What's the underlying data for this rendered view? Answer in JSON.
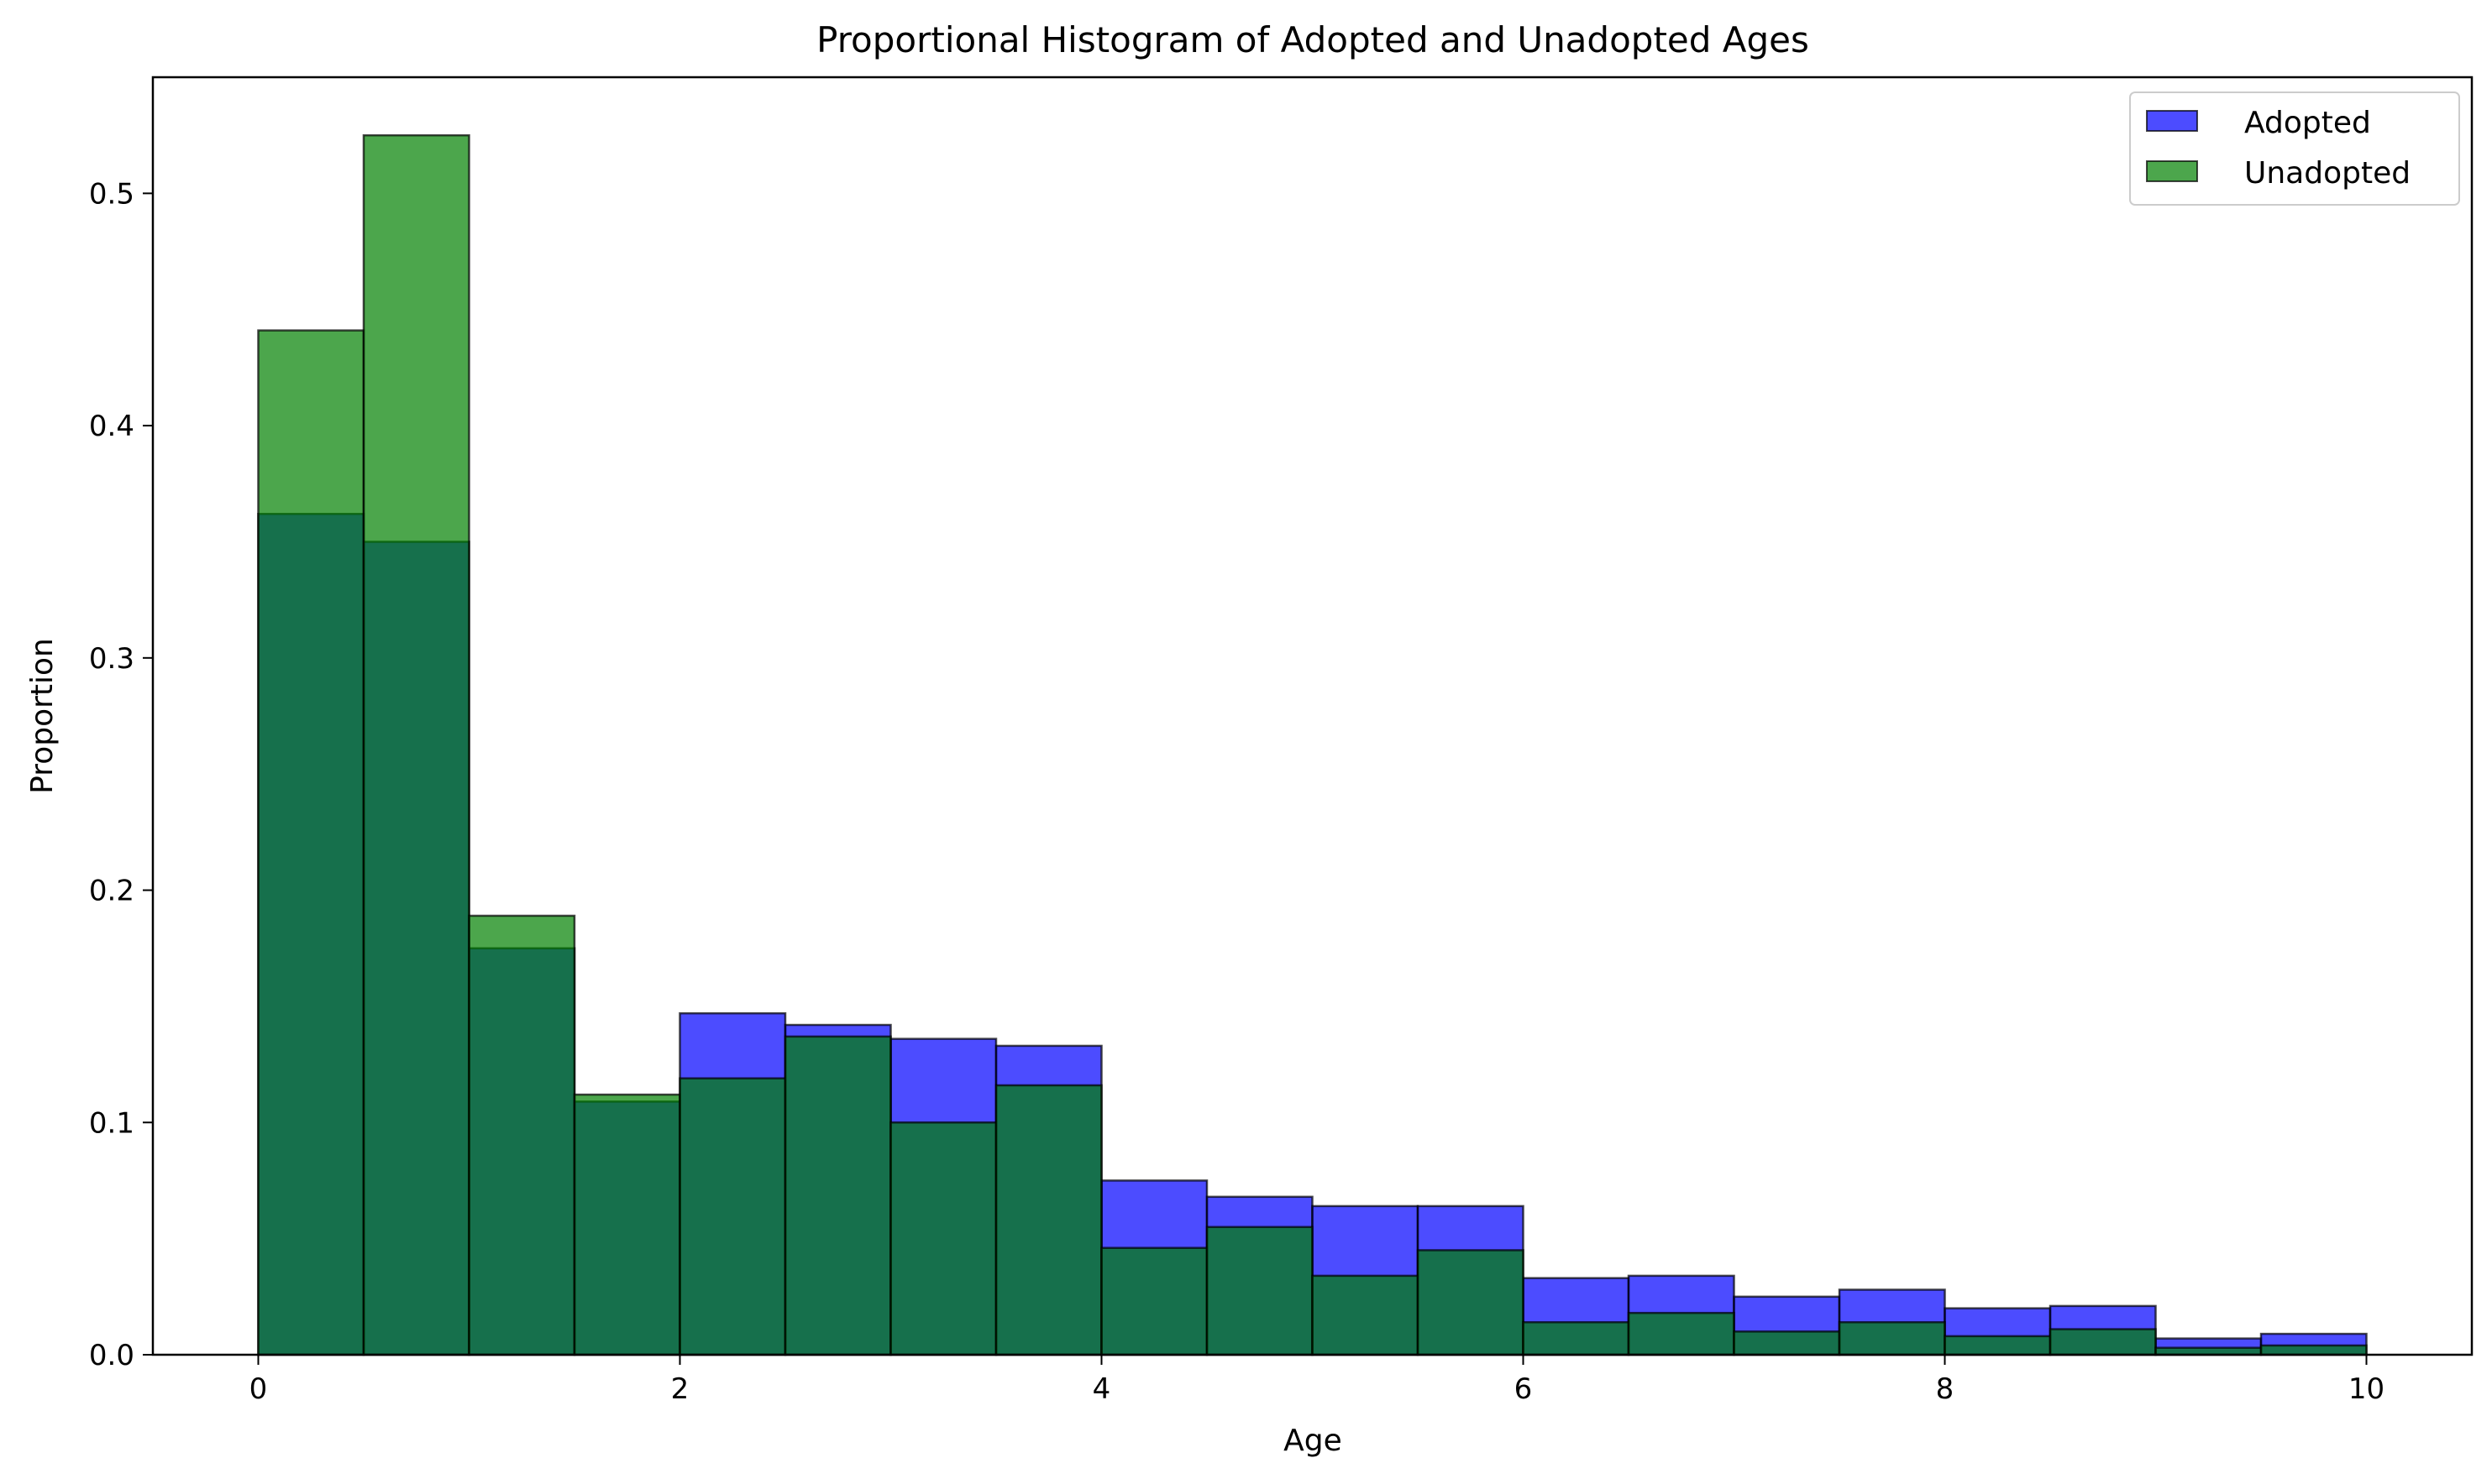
{
  "chart_data": {
    "type": "bar",
    "title": "Proportional Histogram of Adopted and Unadopted Ages",
    "xlabel": "Age",
    "ylabel": "Proportion",
    "xlim": [
      -0.5,
      10.5
    ],
    "ylim": [
      0,
      0.55
    ],
    "xticks": [
      0,
      2,
      4,
      6,
      8,
      10
    ],
    "xtick_labels": [
      "0",
      "2",
      "4",
      "6",
      "8",
      "10"
    ],
    "yticks": [
      0.0,
      0.1,
      0.2,
      0.3,
      0.4,
      0.5
    ],
    "ytick_labels": [
      "0.0",
      "0.1",
      "0.2",
      "0.3",
      "0.4",
      "0.5"
    ],
    "grid": false,
    "legend_position": "top-right",
    "bin_edges": [
      0,
      0.5,
      1,
      1.5,
      2,
      2.5,
      3,
      3.5,
      4,
      4.5,
      5,
      5.5,
      6,
      6.5,
      7,
      7.5,
      8,
      8.5,
      9,
      9.5,
      10
    ],
    "series": [
      {
        "name": "Adopted",
        "color": "#0000ff",
        "opacity": 0.7,
        "values": [
          0.362,
          0.35,
          0.175,
          0.109,
          0.147,
          0.142,
          0.136,
          0.133,
          0.075,
          0.068,
          0.064,
          0.064,
          0.033,
          0.034,
          0.025,
          0.028,
          0.02,
          0.021,
          0.007,
          0.009
        ]
      },
      {
        "name": "Unadopted",
        "color": "#008000",
        "opacity": 0.7,
        "values": [
          0.441,
          0.525,
          0.189,
          0.112,
          0.119,
          0.137,
          0.1,
          0.116,
          0.046,
          0.055,
          0.034,
          0.045,
          0.014,
          0.018,
          0.01,
          0.014,
          0.008,
          0.011,
          0.003,
          0.004
        ]
      }
    ]
  }
}
